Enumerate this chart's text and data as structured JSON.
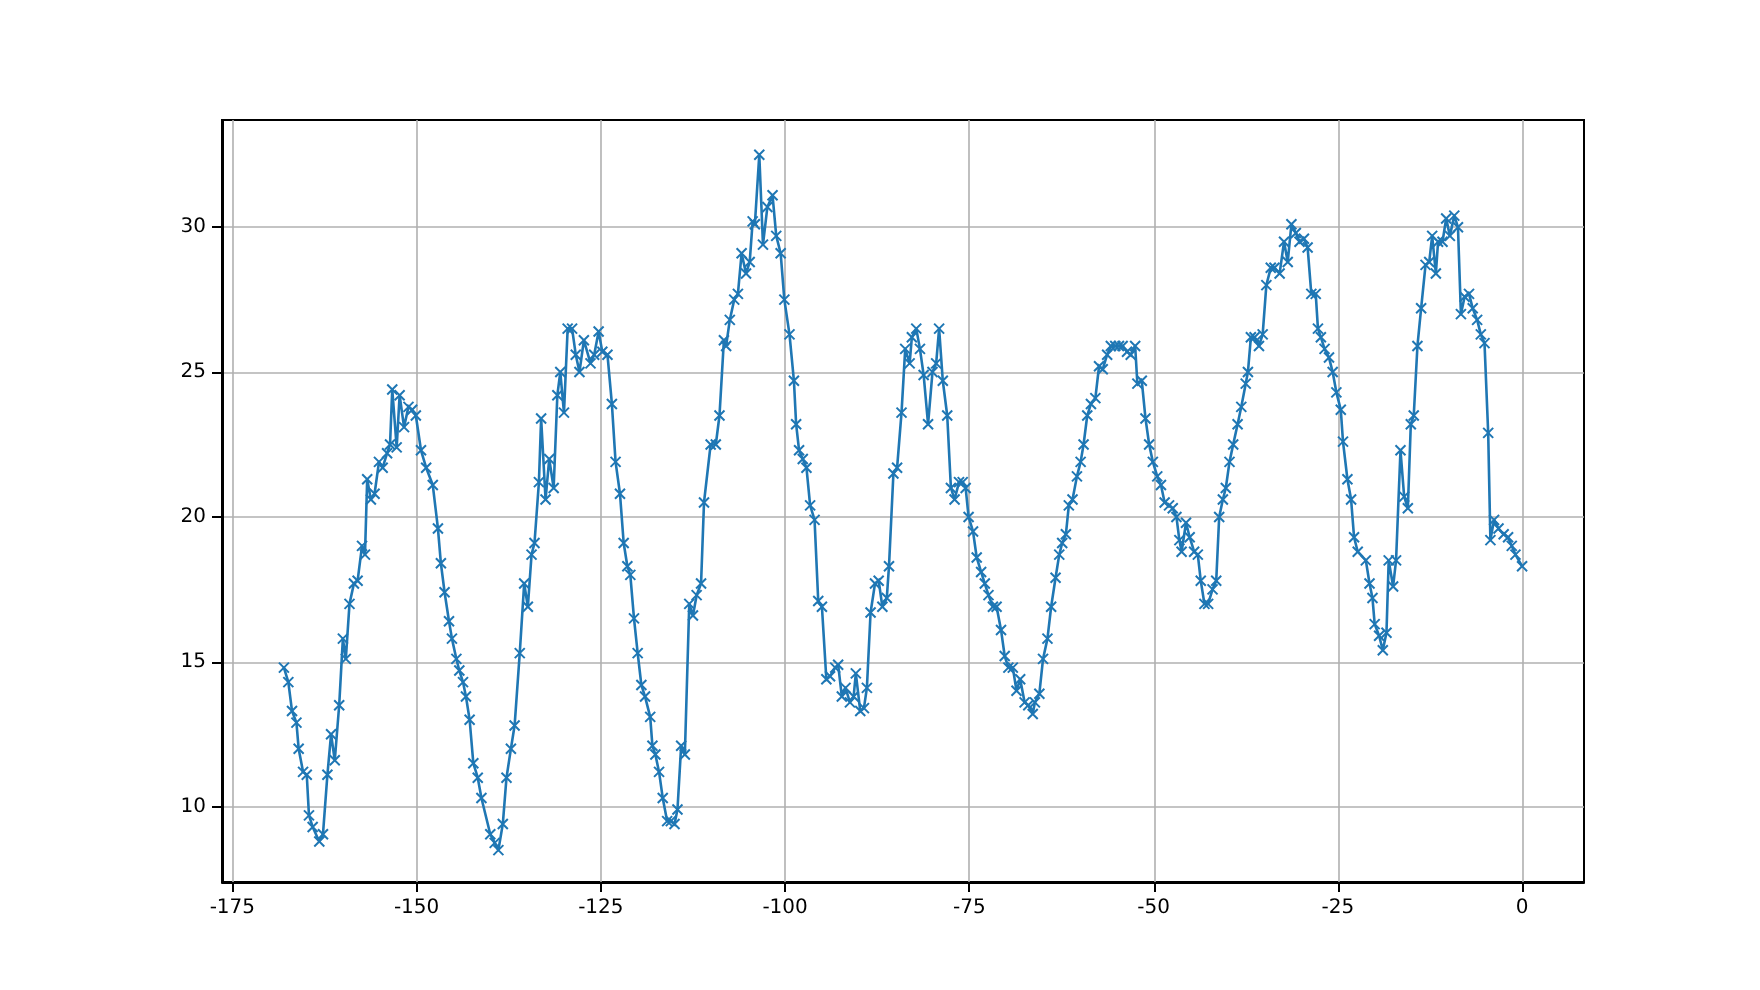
{
  "chart_data": {
    "type": "line",
    "marker": "cross",
    "grid": true,
    "xlim": [
      -176.4,
      8.4
    ],
    "ylim": [
      7.4,
      33.7
    ],
    "xticks": [
      -175,
      -150,
      -125,
      -100,
      -75,
      -50,
      -25,
      0
    ],
    "yticks": [
      10,
      15,
      20,
      25,
      30
    ],
    "series": [
      {
        "color": "#1f77b4",
        "x": [
          -168.0,
          -167.4,
          -166.9,
          -166.3,
          -166.0,
          -165.4,
          -164.9,
          -164.6,
          -164.1,
          -163.2,
          -162.7,
          -162.1,
          -161.6,
          -161.1,
          -160.5,
          -160.0,
          -159.6,
          -159.1,
          -158.5,
          -158.0,
          -157.4,
          -157.0,
          -156.7,
          -156.2,
          -155.7,
          -155.1,
          -154.6,
          -154.0,
          -153.6,
          -153.3,
          -152.7,
          -152.3,
          -151.7,
          -151.1,
          -150.6,
          -150.1,
          -149.4,
          -148.7,
          -147.8,
          -147.1,
          -146.7,
          -146.2,
          -145.6,
          -145.2,
          -144.6,
          -144.2,
          -143.7,
          -143.3,
          -142.8,
          -142.3,
          -141.7,
          -141.2,
          -140.0,
          -139.4,
          -138.9,
          -138.3,
          -137.8,
          -137.2,
          -136.7,
          -136.0,
          -135.4,
          -134.9,
          -134.4,
          -134.0,
          -133.4,
          -133.1,
          -132.5,
          -132.0,
          -131.4,
          -130.9,
          -130.5,
          -130.0,
          -129.5,
          -128.9,
          -128.4,
          -127.9,
          -127.3,
          -126.4,
          -125.9,
          -125.3,
          -124.8,
          -124.1,
          -123.5,
          -123.0,
          -122.4,
          -121.9,
          -121.4,
          -121.0,
          -120.5,
          -120.0,
          -119.5,
          -119.0,
          -118.3,
          -118.0,
          -117.6,
          -117.1,
          -116.6,
          -116.0,
          -115.5,
          -115.0,
          -114.6,
          -114.1,
          -113.6,
          -113.0,
          -112.5,
          -112.0,
          -111.4,
          -111.0,
          -110.1,
          -109.4,
          -108.9,
          -108.3,
          -108.0,
          -107.5,
          -106.9,
          -106.4,
          -105.9,
          -105.3,
          -104.8,
          -104.4,
          -104.1,
          -103.5,
          -103.0,
          -102.4,
          -101.7,
          -101.2,
          -100.6,
          -100.1,
          -99.4,
          -98.8,
          -98.5,
          -98.1,
          -97.6,
          -97.1,
          -96.6,
          -96.0,
          -95.5,
          -95.0,
          -94.4,
          -93.9,
          -93.2,
          -92.8,
          -92.3,
          -91.8,
          -91.2,
          -90.7,
          -90.4,
          -89.8,
          -89.3,
          -88.9,
          -88.4,
          -87.8,
          -87.3,
          -86.8,
          -86.2,
          -85.9,
          -85.3,
          -84.8,
          -84.2,
          -83.7,
          -83.1,
          -82.8,
          -82.2,
          -81.7,
          -81.2,
          -80.6,
          -80.0,
          -79.5,
          -79.1,
          -78.6,
          -78.0,
          -77.5,
          -77.0,
          -76.4,
          -75.9,
          -75.5,
          -75.1,
          -74.5,
          -74.0,
          -73.4,
          -72.9,
          -72.4,
          -71.8,
          -71.3,
          -70.7,
          -70.2,
          -69.7,
          -69.1,
          -68.6,
          -68.1,
          -67.5,
          -67.0,
          -66.4,
          -66.1,
          -65.5,
          -65.0,
          -64.4,
          -63.9,
          -63.3,
          -62.8,
          -62.4,
          -61.9,
          -61.5,
          -61.0,
          -60.4,
          -59.9,
          -59.5,
          -59.0,
          -58.5,
          -57.9,
          -57.4,
          -56.9,
          -56.3,
          -55.8,
          -55.2,
          -54.7,
          -54.2,
          -53.6,
          -53.1,
          -52.5,
          -52.2,
          -51.6,
          -51.1,
          -50.6,
          -50.1,
          -49.5,
          -49.0,
          -48.5,
          -47.9,
          -47.4,
          -46.9,
          -46.5,
          -46.2,
          -45.6,
          -45.1,
          -44.5,
          -44.0,
          -43.6,
          -43.1,
          -42.6,
          -42.0,
          -41.5,
          -41.1,
          -40.6,
          -40.2,
          -39.7,
          -39.2,
          -38.6,
          -38.1,
          -37.5,
          -37.2,
          -36.8,
          -36.3,
          -35.7,
          -35.2,
          -34.7,
          -34.1,
          -33.6,
          -32.9,
          -32.3,
          -31.8,
          -31.3,
          -30.7,
          -30.2,
          -29.6,
          -29.1,
          -28.6,
          -28.0,
          -27.7,
          -27.3,
          -26.8,
          -26.2,
          -25.7,
          -25.2,
          -24.6,
          -24.3,
          -23.7,
          -23.2,
          -22.8,
          -22.3,
          -21.2,
          -20.7,
          -20.3,
          -20.0,
          -19.4,
          -18.9,
          -18.4,
          -18.1,
          -17.5,
          -17.1,
          -16.5,
          -16.0,
          -15.5,
          -15.1,
          -14.7,
          -14.2,
          -13.7,
          -13.1,
          -12.6,
          -12.2,
          -11.7,
          -11.4,
          -10.8,
          -10.3,
          -9.8,
          -9.2,
          -8.7,
          -8.3,
          -7.8,
          -7.2,
          -6.7,
          -6.1,
          -5.6,
          -5.1,
          -4.6,
          -4.3,
          -3.8,
          -3.2,
          -2.5,
          -1.9,
          -1.4,
          -0.9,
          0
        ],
        "values": [
          14.8,
          14.3,
          13.3,
          12.9,
          12.0,
          11.2,
          11.1,
          9.7,
          9.3,
          8.8,
          9.05,
          11.1,
          12.5,
          11.6,
          13.5,
          15.8,
          15.1,
          17.0,
          17.7,
          17.8,
          19.0,
          18.7,
          21.3,
          20.6,
          20.8,
          21.9,
          21.7,
          22.2,
          22.5,
          24.4,
          22.4,
          24.2,
          23.1,
          23.8,
          23.7,
          23.5,
          22.3,
          21.7,
          21.1,
          19.6,
          18.4,
          17.4,
          16.4,
          15.8,
          15.1,
          14.7,
          14.3,
          13.8,
          13.0,
          11.5,
          11.0,
          10.3,
          9.05,
          8.75,
          8.5,
          9.4,
          11.0,
          12.0,
          12.8,
          15.3,
          17.7,
          16.9,
          18.7,
          19.1,
          21.2,
          23.4,
          20.6,
          22.0,
          21.0,
          24.2,
          25.0,
          23.6,
          26.5,
          26.5,
          25.6,
          25.0,
          26.1,
          25.3,
          25.6,
          26.4,
          25.7,
          25.6,
          23.9,
          21.9,
          20.8,
          19.1,
          18.3,
          18.0,
          16.5,
          15.3,
          14.2,
          13.8,
          13.1,
          12.1,
          11.8,
          11.2,
          10.3,
          9.5,
          9.5,
          9.4,
          9.9,
          12.1,
          11.8,
          17.0,
          16.6,
          17.3,
          17.7,
          20.5,
          22.5,
          22.5,
          23.5,
          26.1,
          25.9,
          26.8,
          27.5,
          27.7,
          29.1,
          28.4,
          28.8,
          30.2,
          30.1,
          32.5,
          29.4,
          30.7,
          31.1,
          29.7,
          29.1,
          27.5,
          26.3,
          24.7,
          23.2,
          22.3,
          22.0,
          21.7,
          20.4,
          19.9,
          17.1,
          16.9,
          14.4,
          14.5,
          14.8,
          14.9,
          13.8,
          14.1,
          13.6,
          13.8,
          14.6,
          13.3,
          13.4,
          14.1,
          16.7,
          17.7,
          17.8,
          16.9,
          17.2,
          18.3,
          21.5,
          21.7,
          23.6,
          25.8,
          25.3,
          26.2,
          26.5,
          25.8,
          24.9,
          23.2,
          25.0,
          25.3,
          26.5,
          24.7,
          23.5,
          21.0,
          20.6,
          21.2,
          21.2,
          21.0,
          20.0,
          19.5,
          18.6,
          18.1,
          17.7,
          17.3,
          16.9,
          16.9,
          16.1,
          15.2,
          14.8,
          14.8,
          14.0,
          14.4,
          13.6,
          13.5,
          13.2,
          13.6,
          13.9,
          15.1,
          15.8,
          16.9,
          17.9,
          18.7,
          19.1,
          19.4,
          20.4,
          20.6,
          21.4,
          21.9,
          22.5,
          23.5,
          23.9,
          24.1,
          25.2,
          25.1,
          25.6,
          25.9,
          25.9,
          25.9,
          25.9,
          25.7,
          25.6,
          25.9,
          24.6,
          24.7,
          23.4,
          22.5,
          21.9,
          21.4,
          21.1,
          20.5,
          20.4,
          20.3,
          20.0,
          19.2,
          18.8,
          19.8,
          19.3,
          18.8,
          18.7,
          17.8,
          17.0,
          17.0,
          17.5,
          17.8,
          20.0,
          20.6,
          21.0,
          21.9,
          22.5,
          23.2,
          23.8,
          24.6,
          25.0,
          26.2,
          26.2,
          25.9,
          26.3,
          28.0,
          28.6,
          28.6,
          28.4,
          29.5,
          28.8,
          30.1,
          29.8,
          29.5,
          29.6,
          29.3,
          27.7,
          27.7,
          26.5,
          26.2,
          25.8,
          25.5,
          25.0,
          24.3,
          23.7,
          22.6,
          21.3,
          20.6,
          19.3,
          18.8,
          18.5,
          17.7,
          17.2,
          16.3,
          15.9,
          15.4,
          16.0,
          18.5,
          17.6,
          18.5,
          22.3,
          20.7,
          20.3,
          23.2,
          23.5,
          25.9,
          27.2,
          28.7,
          28.8,
          29.7,
          28.4,
          29.5,
          29.5,
          30.3,
          29.7,
          30.4,
          30.0,
          27.0,
          27.6,
          27.7,
          27.2,
          26.8,
          26.3,
          26.0,
          22.9,
          19.2,
          19.9,
          19.6,
          19.4,
          19.3,
          19.0,
          18.7,
          18.3
        ]
      }
    ]
  }
}
